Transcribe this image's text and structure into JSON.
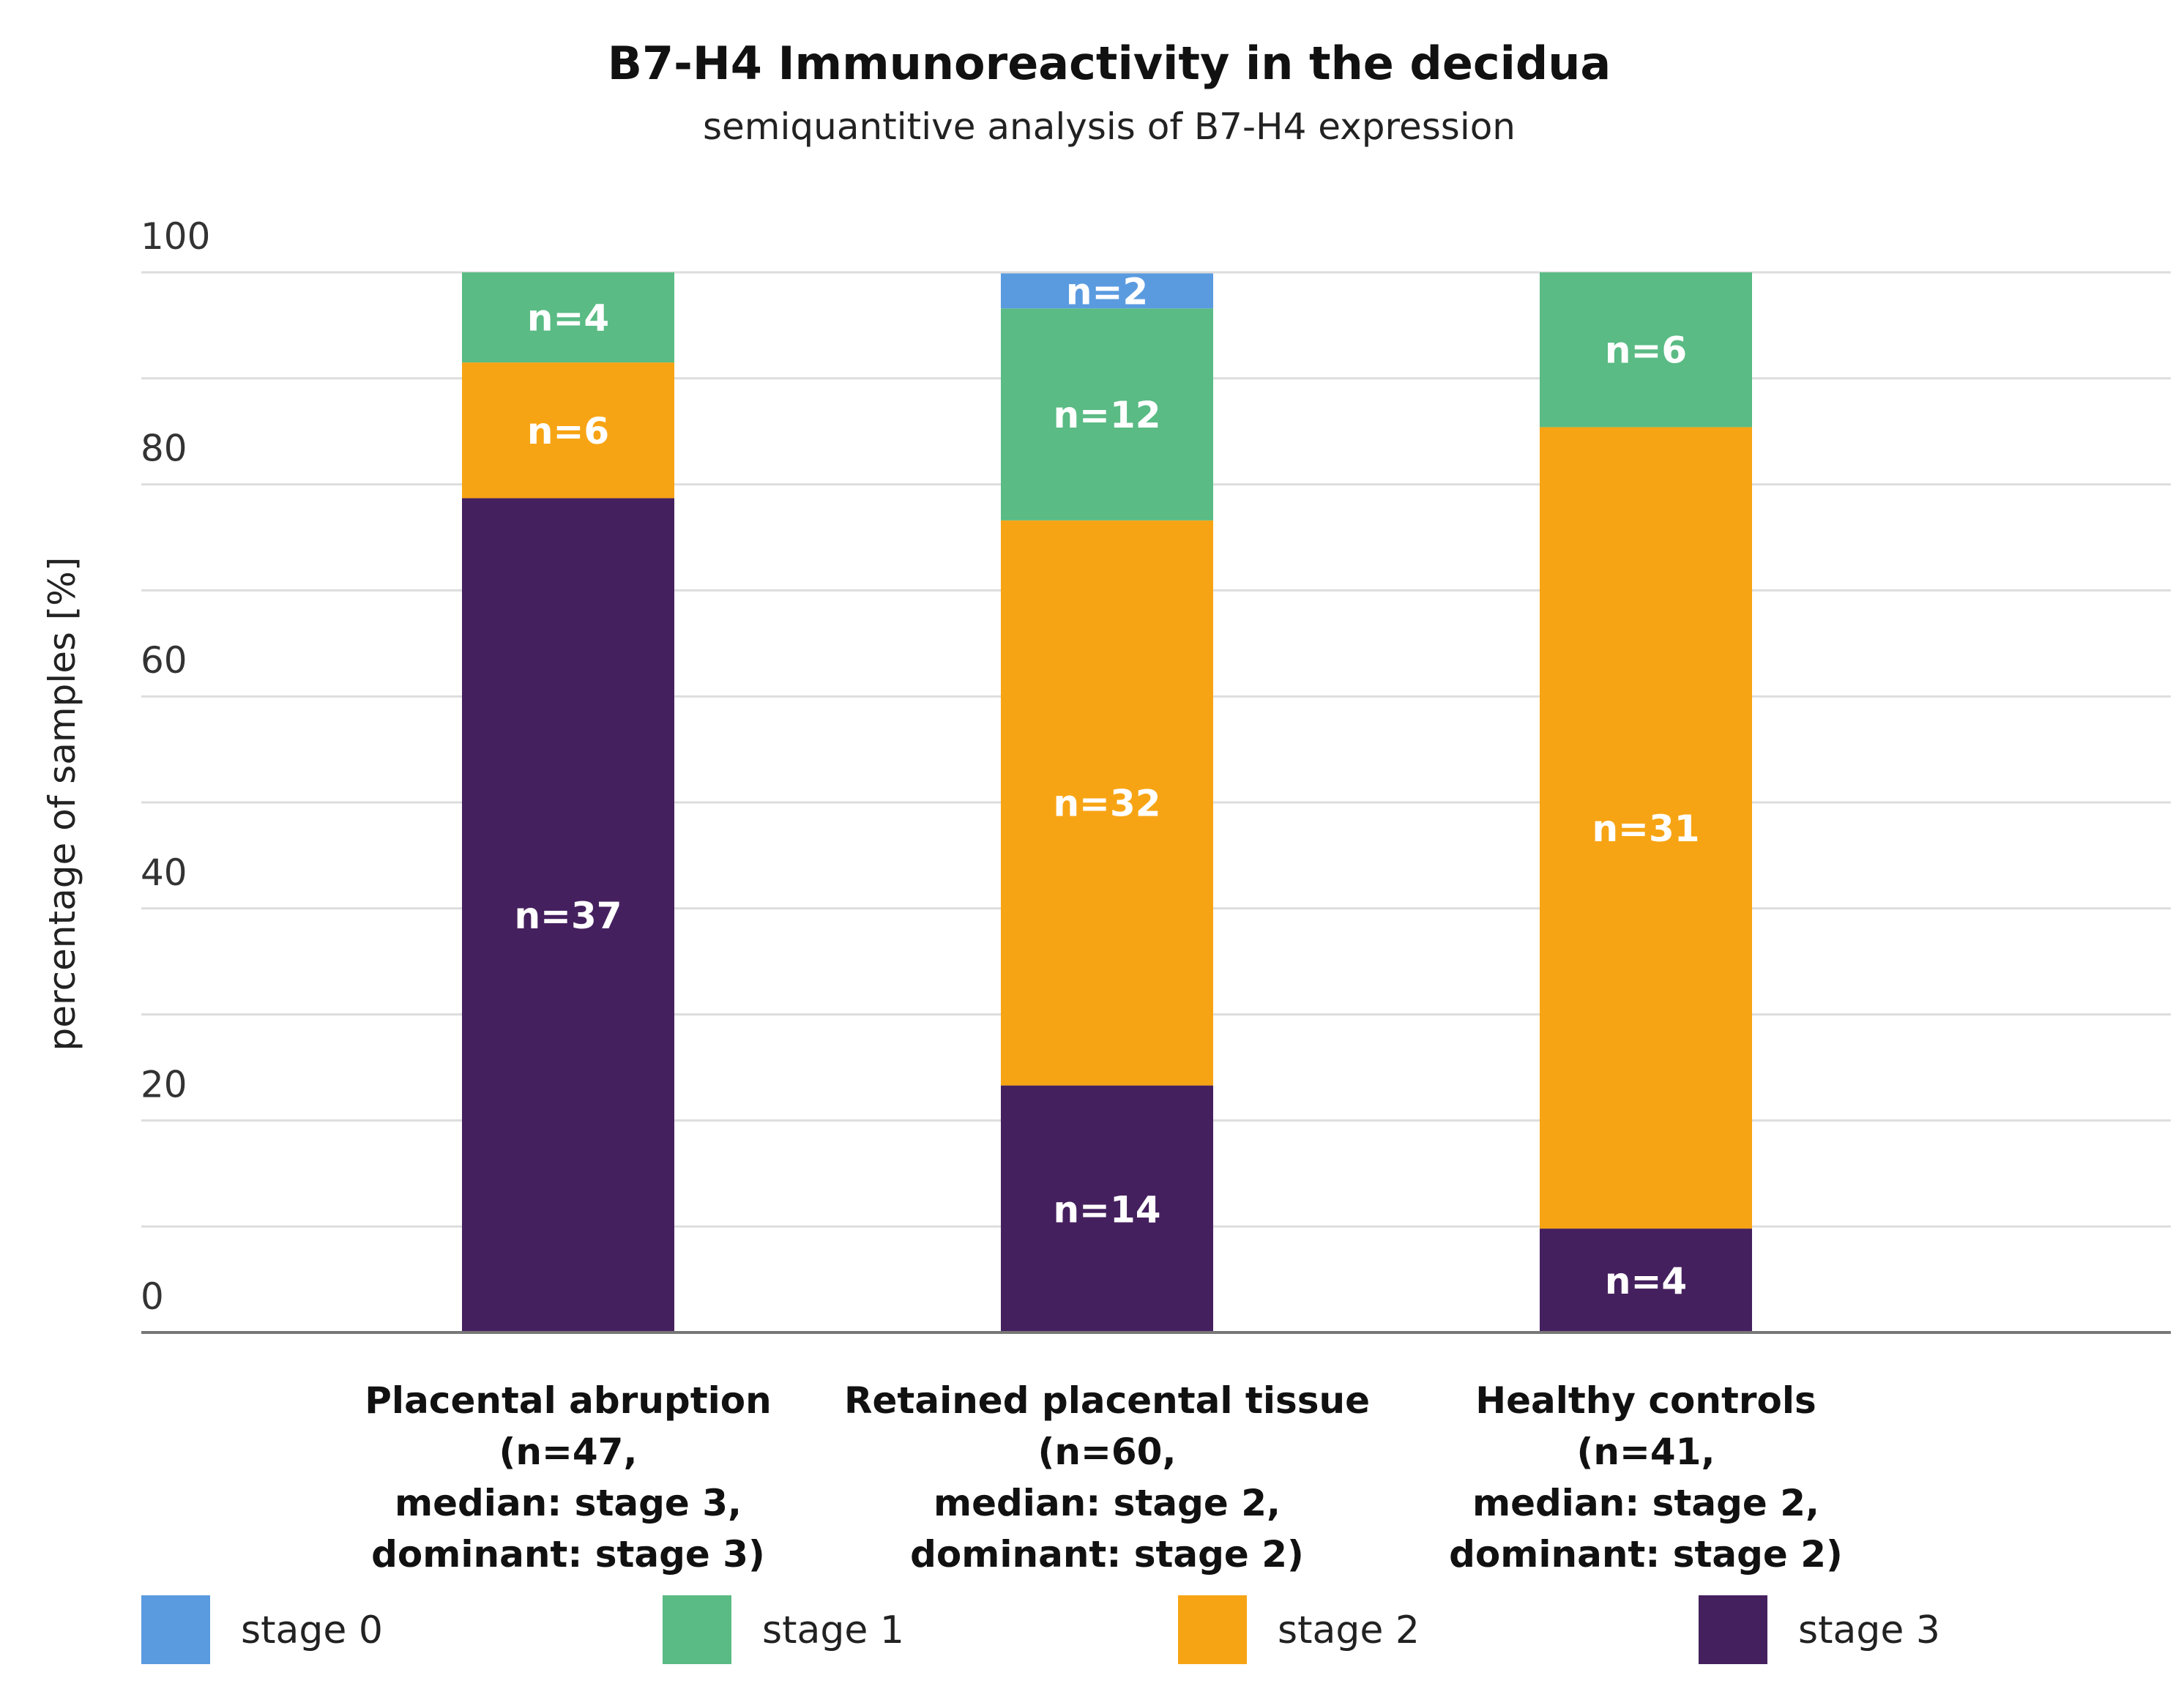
{
  "chart_data": {
    "type": "bar",
    "stacked": true,
    "title": "B7-H4 Immunoreactivity in the decidua",
    "subtitle": "semiquantitive analysis of B7-H4 expression",
    "xlabel": "",
    "ylabel": "percentage of samples [%]",
    "ylim": [
      0,
      100
    ],
    "yticks": [
      0,
      20,
      40,
      60,
      80,
      100
    ],
    "grid": true,
    "legend_position": "bottom",
    "categories": [
      [
        "Placental abruption",
        "(n=47,",
        "median: stage 3,",
        "dominant: stage 3)"
      ],
      [
        "Retained placental tissue",
        "(n=60,",
        "median: stage 2,",
        "dominant: stage 2)"
      ],
      [
        "Healthy controls",
        "(n=41,",
        "median: stage 2,",
        "dominant: stage 2)"
      ]
    ],
    "series": [
      {
        "name": "stage 3",
        "color": "#45205e",
        "values": [
          78.7,
          23.3,
          9.8
        ],
        "labels": [
          "n=37",
          "n=14",
          "n=4"
        ]
      },
      {
        "name": "stage 2",
        "color": "#f7a414",
        "values": [
          12.8,
          53.3,
          75.6
        ],
        "labels": [
          "n=6",
          "n=32",
          "n=31"
        ]
      },
      {
        "name": "stage 1",
        "color": "#5abb84",
        "values": [
          8.5,
          20.0,
          14.6
        ],
        "labels": [
          "n=4",
          "n=12",
          "n=6"
        ]
      },
      {
        "name": "stage 0",
        "color": "#5a9be0",
        "values": [
          0,
          3.3,
          0
        ],
        "labels": [
          "",
          "n=2",
          ""
        ]
      }
    ],
    "legend_order": [
      "stage 0",
      "stage 1",
      "stage 2",
      "stage 3"
    ]
  }
}
